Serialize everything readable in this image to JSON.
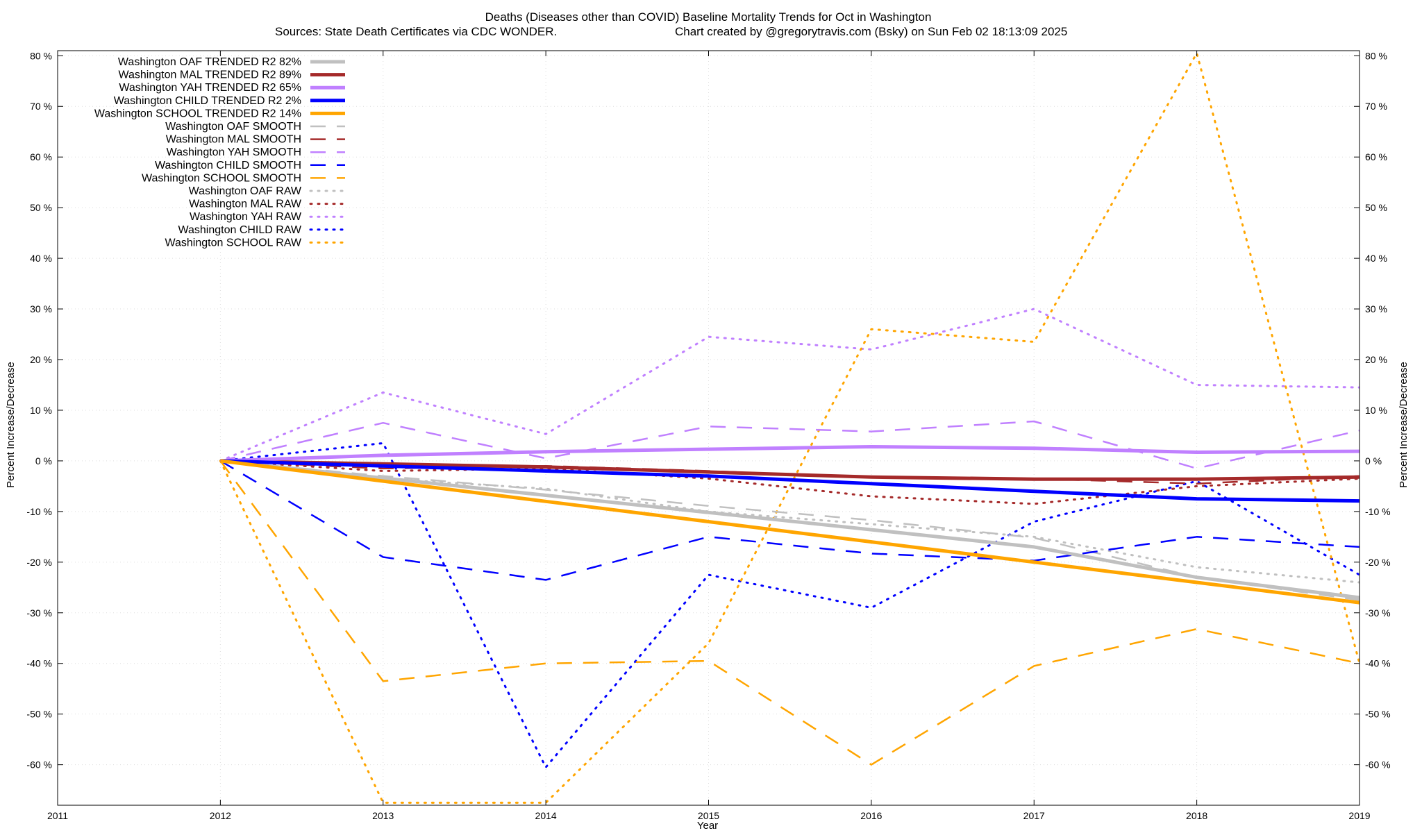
{
  "chart_data": {
    "type": "line",
    "title": "Deaths (Diseases other than COVID)  Baseline Mortality Trends for Oct in Washington",
    "subtitle_left": "Sources: State Death Certificates via CDC WONDER.",
    "subtitle_right": "Chart created by @gregorytravis.com (Bsky) on Sun Feb 02 18:13:09 2025",
    "xlabel": "Year",
    "ylabel": "Percent Increase/Decrease",
    "y2label": "Percent Increase/Decrease",
    "xlim": [
      2011,
      2019
    ],
    "ylim": [
      -68,
      81
    ],
    "x_ticks": [
      2011,
      2012,
      2013,
      2014,
      2015,
      2016,
      2017,
      2018,
      2019
    ],
    "x_tick_labels": [
      "2011",
      "2012",
      "2013",
      "2014",
      "2015",
      "2016",
      "2017",
      "2018",
      "2019"
    ],
    "y_ticks": [
      80,
      70,
      60,
      50,
      40,
      30,
      20,
      10,
      0,
      -10,
      -20,
      -30,
      -40,
      -50,
      -60
    ],
    "y_tick_labels": [
      "80 %",
      "70 %",
      "60 %",
      "50 %",
      "40 %",
      "30 %",
      "20 %",
      "10 %",
      "0 %",
      "-10 %",
      "-20 %",
      "-30 %",
      "-40 %",
      "-50 %",
      "-60 %"
    ],
    "grid": true,
    "legend_position": "top-left",
    "x": [
      2012,
      2013,
      2014,
      2015,
      2016,
      2017,
      2018,
      2019
    ],
    "series": [
      {
        "name": "Washington OAF TRENDED R2  82%",
        "color": "#c0c0c0",
        "style": "solid",
        "values": [
          0,
          -3.4,
          -6.8,
          -10.2,
          -13.6,
          -17.0,
          -23.0,
          -27.0
        ]
      },
      {
        "name": "Washington MAL TRENDED R2  89%",
        "color": "#a52a2a",
        "style": "solid",
        "values": [
          0,
          -0.6,
          -1.2,
          -2.2,
          -3.2,
          -3.6,
          -3.6,
          -3.2
        ]
      },
      {
        "name": "Washington YAH TRENDED R2  65%",
        "color": "#c080ff",
        "style": "solid",
        "values": [
          0,
          1.1,
          1.8,
          2.3,
          2.8,
          2.5,
          1.7,
          1.9
        ]
      },
      {
        "name": "Washington CHILD TRENDED R2   2%",
        "color": "#0000ff",
        "style": "solid",
        "values": [
          0,
          -1.0,
          -2.0,
          -3.0,
          -4.5,
          -6.0,
          -7.5,
          -7.9
        ]
      },
      {
        "name": "Washington SCHOOL TRENDED R2  14%",
        "color": "#ffa500",
        "style": "solid",
        "values": [
          0,
          -4.0,
          -8.0,
          -12.0,
          -16.0,
          -20.0,
          -24.0,
          -28.0
        ]
      },
      {
        "name": "Washington OAF SMOOTH",
        "color": "#c0c0c0",
        "style": "dashed",
        "values": [
          0,
          -3.0,
          -5.7,
          -8.9,
          -11.7,
          -15.2,
          -23.0,
          -27.5
        ]
      },
      {
        "name": "Washington MAL SMOOTH",
        "color": "#a52a2a",
        "style": "dashed",
        "values": [
          0,
          -1.5,
          -1.0,
          -2.0,
          -3.3,
          -3.5,
          -4.5,
          -3.0
        ]
      },
      {
        "name": "Washington YAH SMOOTH",
        "color": "#c080ff",
        "style": "dashed",
        "values": [
          0,
          7.5,
          0.5,
          6.8,
          5.8,
          7.8,
          -1.5,
          6.0
        ]
      },
      {
        "name": "Washington CHILD SMOOTH",
        "color": "#0000ff",
        "style": "dashed",
        "values": [
          0,
          -19.0,
          -23.5,
          -15.0,
          -18.3,
          -19.7,
          -15.0,
          -17.0
        ]
      },
      {
        "name": "Washington SCHOOL SMOOTH",
        "color": "#ffa500",
        "style": "dashed",
        "values": [
          0,
          -43.5,
          -40.0,
          -39.5,
          -60.0,
          -40.5,
          -33.2,
          -40.0
        ]
      },
      {
        "name": "Washington OAF RAW",
        "color": "#c0c0c0",
        "style": "dotted",
        "values": [
          0,
          -3.5,
          -5.5,
          -10.0,
          -12.5,
          -15.0,
          -21.0,
          -24.0
        ]
      },
      {
        "name": "Washington MAL RAW",
        "color": "#a52a2a",
        "style": "dotted",
        "values": [
          0,
          -2.0,
          -1.5,
          -3.5,
          -7.0,
          -8.5,
          -5.0,
          -3.5
        ]
      },
      {
        "name": "Washington YAH RAW",
        "color": "#c080ff",
        "style": "dotted",
        "values": [
          0,
          13.5,
          5.3,
          24.5,
          22.0,
          30.0,
          15.0,
          14.5
        ]
      },
      {
        "name": "Washington CHILD RAW",
        "color": "#0000ff",
        "style": "dotted",
        "values": [
          0,
          3.5,
          -60.5,
          -22.5,
          -29.0,
          -12.0,
          -4.0,
          -22.5
        ]
      },
      {
        "name": "Washington SCHOOL RAW",
        "color": "#ffa500",
        "style": "dotted",
        "values": [
          0,
          -67.5,
          -67.5,
          -36.0,
          26.0,
          23.5,
          80.5,
          -40.0
        ]
      }
    ]
  }
}
